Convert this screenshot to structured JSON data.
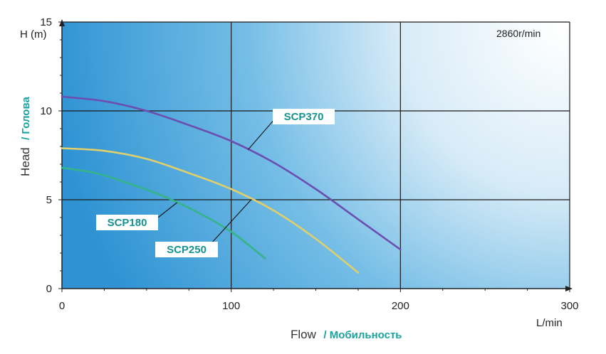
{
  "chart_data": {
    "type": "line",
    "speed_label": "2860r/min",
    "x_unit": "L/min",
    "y_unit": "H (m)",
    "xlabel": {
      "main": "Flow",
      "secondary": "/ Мобильность"
    },
    "ylabel": {
      "main": "Head",
      "secondary": "/ Голова"
    },
    "xlim": [
      0,
      300
    ],
    "ylim": [
      0,
      15
    ],
    "xticks": [
      0,
      100,
      200,
      300
    ],
    "yticks": [
      0,
      5,
      10,
      15
    ],
    "grid": true,
    "series": [
      {
        "name": "SCP370",
        "color": "#6a4fb0",
        "x": [
          0,
          25,
          50,
          75,
          100,
          125,
          150,
          175,
          200
        ],
        "y": [
          10.8,
          10.55,
          10.0,
          9.2,
          8.3,
          7.1,
          5.6,
          3.9,
          2.2
        ]
      },
      {
        "name": "SCP250",
        "color": "#e0cf6a",
        "x": [
          0,
          25,
          50,
          75,
          100,
          125,
          150,
          175
        ],
        "y": [
          7.9,
          7.75,
          7.3,
          6.5,
          5.6,
          4.4,
          2.8,
          0.9
        ]
      },
      {
        "name": "SCP180",
        "color": "#35b38a",
        "x": [
          0,
          20,
          40,
          60,
          80,
          100,
          120
        ],
        "y": [
          6.8,
          6.5,
          5.9,
          5.2,
          4.3,
          3.2,
          1.7
        ]
      }
    ]
  }
}
